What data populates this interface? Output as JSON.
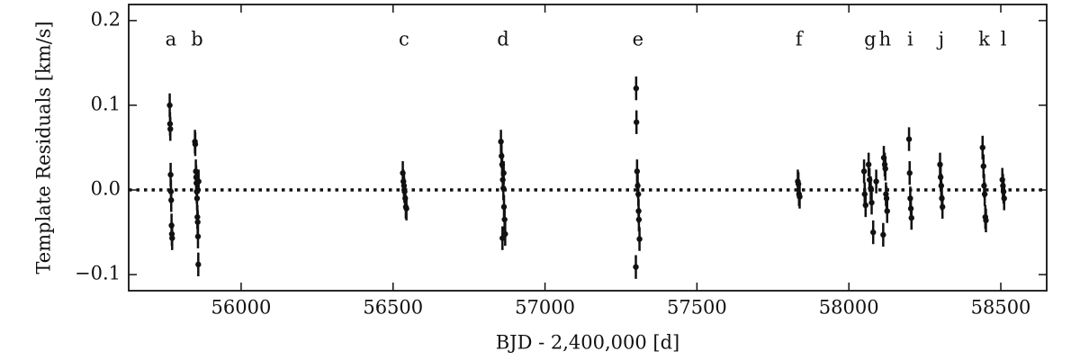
{
  "chart_data": {
    "type": "scatter",
    "x_label": "BJD - 2,400,000 [d]",
    "y_label": "Template Residuals [km/s]",
    "xlim": [
      55630,
      58651
    ],
    "ylim": [
      -0.119,
      0.219
    ],
    "xticks": [
      56000,
      56500,
      57000,
      57500,
      58000,
      58500
    ],
    "yticks": [
      {
        "value": -0.1,
        "label": "−0.1"
      },
      {
        "value": 0,
        "label": "0.0"
      },
      0.1,
      0.2
    ],
    "reference_line": 0,
    "annotations": [
      {
        "text": "a",
        "x": 55769
      },
      {
        "text": "b",
        "x": 55855
      },
      {
        "text": "c",
        "x": 56536
      },
      {
        "text": "d",
        "x": 56862
      },
      {
        "text": "e",
        "x": 57306
      },
      {
        "text": "f",
        "x": 57836
      },
      {
        "text": "g",
        "x": 58070
      },
      {
        "text": "h",
        "x": 58119
      },
      {
        "text": "i",
        "x": 58202
      },
      {
        "text": "j",
        "x": 58304
      },
      {
        "text": "k",
        "x": 58445
      },
      {
        "text": "l",
        "x": 58509
      }
    ],
    "series": [
      {
        "color": "#111111",
        "x": [
          55765,
          55766,
          55767,
          55768,
          55769,
          55770,
          55771,
          55772,
          55773,
          55848,
          55849,
          55851,
          55852,
          55853,
          55854,
          55855,
          55856,
          55857,
          55858,
          55859,
          55860,
          56532,
          56534,
          56536,
          56537,
          56538,
          56540,
          56542,
          56544,
          56855,
          56857,
          56859,
          56860,
          56861,
          56863,
          56864,
          56865,
          56867,
          56869,
          57299,
          57300,
          57301,
          57303,
          57305,
          57307,
          57308,
          57309,
          57311,
          57832,
          57834,
          57836,
          57838,
          58050,
          58052,
          58055,
          58065,
          58068,
          58072,
          58075,
          58080,
          58090,
          58113,
          58115,
          58118,
          58120,
          58122,
          58124,
          58126,
          58198,
          58200,
          58202,
          58204,
          58206,
          58300,
          58302,
          58304,
          58306,
          58308,
          58440,
          58443,
          58445,
          58447,
          58449,
          58451,
          58505,
          58507,
          58509,
          58511
        ],
        "values": [
          0.1,
          0.078,
          0.072,
          0.018,
          -0.002,
          -0.012,
          -0.042,
          -0.052,
          -0.057,
          0.057,
          0.054,
          0.022,
          0.015,
          0.008,
          -0.002,
          -0.01,
          -0.032,
          -0.038,
          -0.055,
          -0.088,
          0.01,
          0.02,
          0.01,
          0.005,
          0.0,
          -0.002,
          -0.01,
          -0.02,
          -0.022,
          0.057,
          0.04,
          0.03,
          -0.057,
          0.012,
          0.002,
          0.02,
          -0.02,
          -0.035,
          -0.052,
          -0.091,
          0.12,
          0.08,
          0.022,
          0.005,
          -0.005,
          -0.025,
          -0.035,
          -0.058,
          0.01,
          0.007,
          -0.005,
          -0.008,
          0.022,
          -0.005,
          -0.018,
          0.03,
          0.012,
          0.002,
          -0.015,
          -0.05,
          0.01,
          -0.053,
          0.038,
          0.03,
          0.025,
          -0.005,
          -0.01,
          -0.025,
          0.06,
          0.02,
          -0.01,
          -0.022,
          -0.033,
          0.03,
          0.015,
          0.005,
          -0.01,
          -0.02,
          0.05,
          0.028,
          0.005,
          -0.005,
          -0.032,
          -0.036,
          0.012,
          0.005,
          -0.002,
          -0.01
        ],
        "errors": [
          0.014,
          0.014,
          0.014,
          0.014,
          0.014,
          0.014,
          0.014,
          0.014,
          0.014,
          0.014,
          0.014,
          0.014,
          0.014,
          0.014,
          0.014,
          0.014,
          0.014,
          0.014,
          0.014,
          0.014,
          0.014,
          0.014,
          0.014,
          0.014,
          0.014,
          0.014,
          0.014,
          0.014,
          0.014,
          0.014,
          0.014,
          0.014,
          0.014,
          0.014,
          0.014,
          0.014,
          0.014,
          0.014,
          0.014,
          0.014,
          0.014,
          0.014,
          0.014,
          0.014,
          0.014,
          0.014,
          0.014,
          0.014,
          0.014,
          0.014,
          0.014,
          0.014,
          0.014,
          0.014,
          0.014,
          0.014,
          0.014,
          0.014,
          0.014,
          0.014,
          0.014,
          0.014,
          0.014,
          0.014,
          0.014,
          0.014,
          0.014,
          0.014,
          0.014,
          0.014,
          0.014,
          0.014,
          0.014,
          0.014,
          0.014,
          0.014,
          0.014,
          0.014,
          0.014,
          0.014,
          0.014,
          0.014,
          0.014,
          0.014,
          0.014,
          0.014,
          0.014,
          0.014
        ]
      }
    ]
  }
}
